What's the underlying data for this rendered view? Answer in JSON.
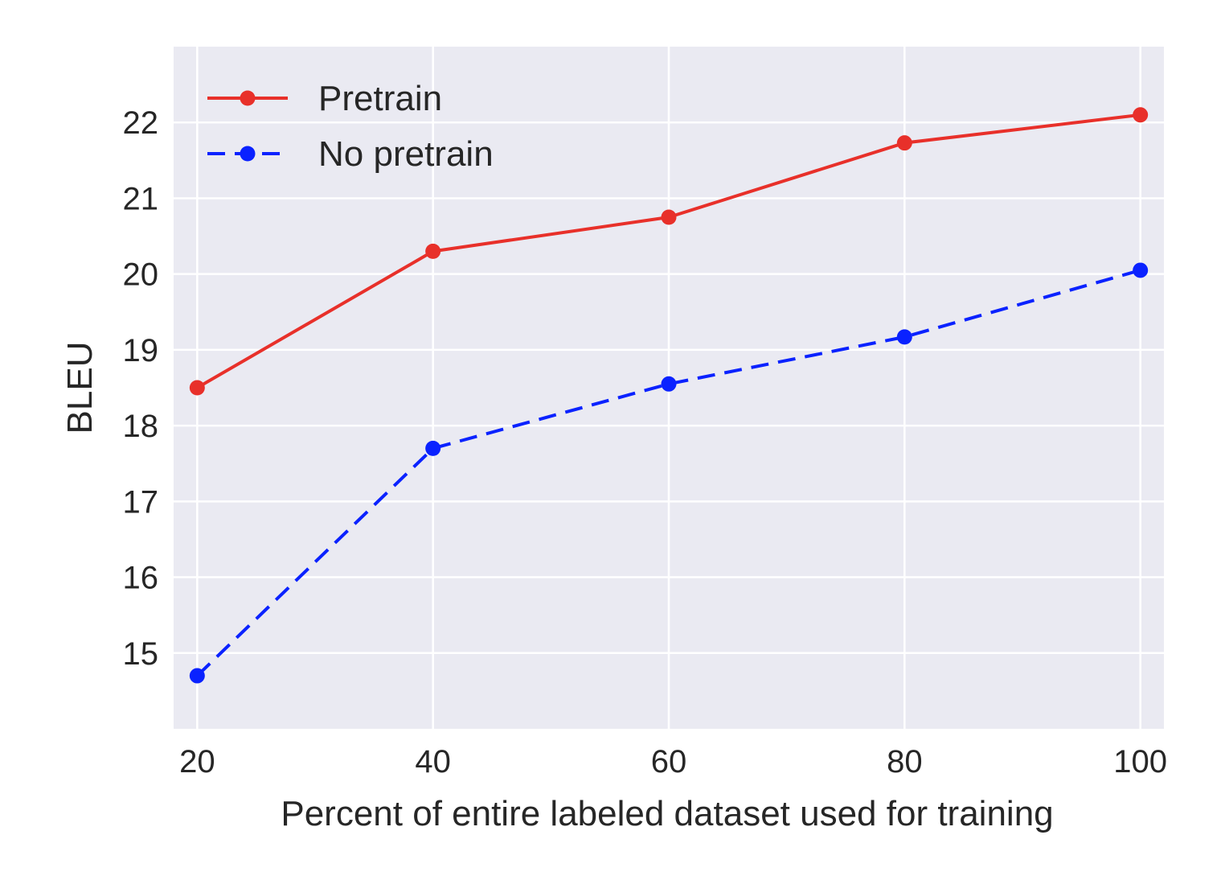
{
  "chart_data": {
    "type": "line",
    "title": "",
    "xlabel": "Percent of entire labeled dataset used for training",
    "ylabel": "BLEU",
    "x": [
      20,
      40,
      60,
      80,
      100
    ],
    "xticks": [
      20,
      40,
      60,
      80,
      100
    ],
    "yticks": [
      15,
      16,
      17,
      18,
      19,
      20,
      21,
      22
    ],
    "xlim": [
      18,
      102
    ],
    "ylim": [
      14.0,
      23.0
    ],
    "grid": true,
    "legend_position": "upper-left",
    "background_color": "#eaeaf2",
    "grid_color": "#ffffff",
    "series": [
      {
        "name": "Pretrain",
        "color": "#e8302a",
        "line_style": "solid",
        "marker": "circle",
        "values": [
          18.5,
          20.3,
          20.75,
          21.73,
          22.1
        ]
      },
      {
        "name": "No pretrain",
        "color": "#0a22ff",
        "line_style": "dashed",
        "marker": "circle",
        "values": [
          14.7,
          17.7,
          18.55,
          19.17,
          20.05
        ]
      }
    ]
  }
}
